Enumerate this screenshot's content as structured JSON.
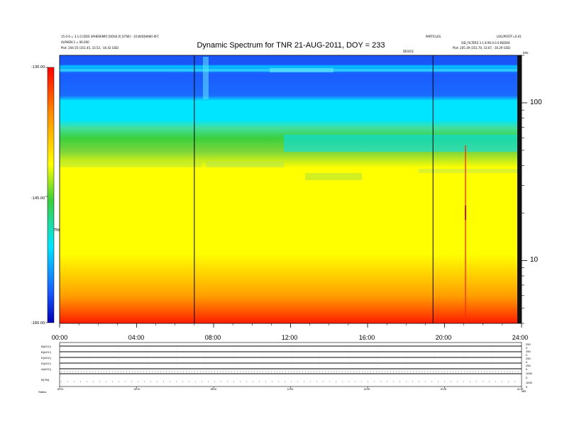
{
  "header": {
    "title": "Dynamic Spectrum for TNR 21-AUG-2011, DOY = 233",
    "left_line1": "15.0-0 = 3.1.0 [DOS SPHEREMP] [DOS0.0] [STW] - 10.W/D[HKW] KFC",
    "left_line2": "ALPHEN:3 = 06.000",
    "left_line3": "Plot:    204.55 (351.45, 33.53, -16.42 GSE)",
    "right_line1": "PARTICLES",
    "right_line2": "LOG/POSTF=0.01",
    "right_line3": "SID_FILTERS 3.1 8.90.0.0.0.REDOX",
    "right_line4": "Plot:   205.39 (351.70, 33.67, -16.29 GSE)",
    "small_center_label": "DEVICE",
    "small_right_corner": "kHz"
  },
  "colorbar": {
    "ticks": [
      "-130.00",
      "-145.00",
      "-160.00"
    ],
    "label": "TNR"
  },
  "chart_data": {
    "type": "heatmap",
    "title": "Dynamic Spectrum for TNR 21-AUG-2011, DOY = 233",
    "date": "21-AUG-2011",
    "doy": 233,
    "x_axis": {
      "label": "",
      "ticks": [
        "00:00",
        "04:00",
        "08:00",
        "12:00",
        "16:00",
        "20:00",
        "24:00"
      ],
      "range_hours": [
        0,
        24
      ]
    },
    "y_axis": {
      "label": "kHz",
      "scale": "log",
      "ticks": [
        10,
        100
      ],
      "range_khz": [
        4,
        200
      ]
    },
    "color_scale": {
      "label": "TNR",
      "range": [
        -160,
        -130
      ],
      "ticks": [
        -130,
        -145,
        -160
      ],
      "colormap": "jet (red at bottom, blue at top)"
    },
    "vertical_markers_hours": [
      7.0,
      19.4
    ],
    "bands": [
      {
        "freq_from_khz": 130,
        "freq_to_khz": 200,
        "color": "blue"
      },
      {
        "freq_from_khz": 70,
        "freq_to_khz": 130,
        "color": "cyan"
      },
      {
        "freq_from_khz": 45,
        "freq_to_khz": 70,
        "color": "green"
      },
      {
        "freq_from_khz": 9,
        "freq_to_khz": 45,
        "color": "yellow"
      },
      {
        "freq_from_khz": 4,
        "freq_to_khz": 9,
        "color": "orange to red"
      }
    ]
  },
  "bottom_panel": {
    "row_labels": [
      "B(AGC)",
      "B(AGC)",
      "E(AGC)",
      "E(AGC)",
      "A(AGC)",
      "B(TM)"
    ],
    "right_labels": [
      "250",
      "0",
      "250",
      "0",
      "250",
      "0",
      "250",
      "0",
      "1000",
      "0",
      "1000",
      "0"
    ],
    "x_ticks": [
      "00:00",
      "04:00",
      "08:00",
      "12:00",
      "16:00",
      "20:00",
      "24:00"
    ],
    "footer_left": "Status",
    "footer_right": "MB"
  },
  "colors": {
    "red": "#ff0000",
    "orange": "#ff8c00",
    "yellow": "#ffff00",
    "green": "#3ccf3c",
    "cyan": "#00e5ff",
    "blue": "#1a5bff",
    "darkblue": "#0000b4"
  }
}
